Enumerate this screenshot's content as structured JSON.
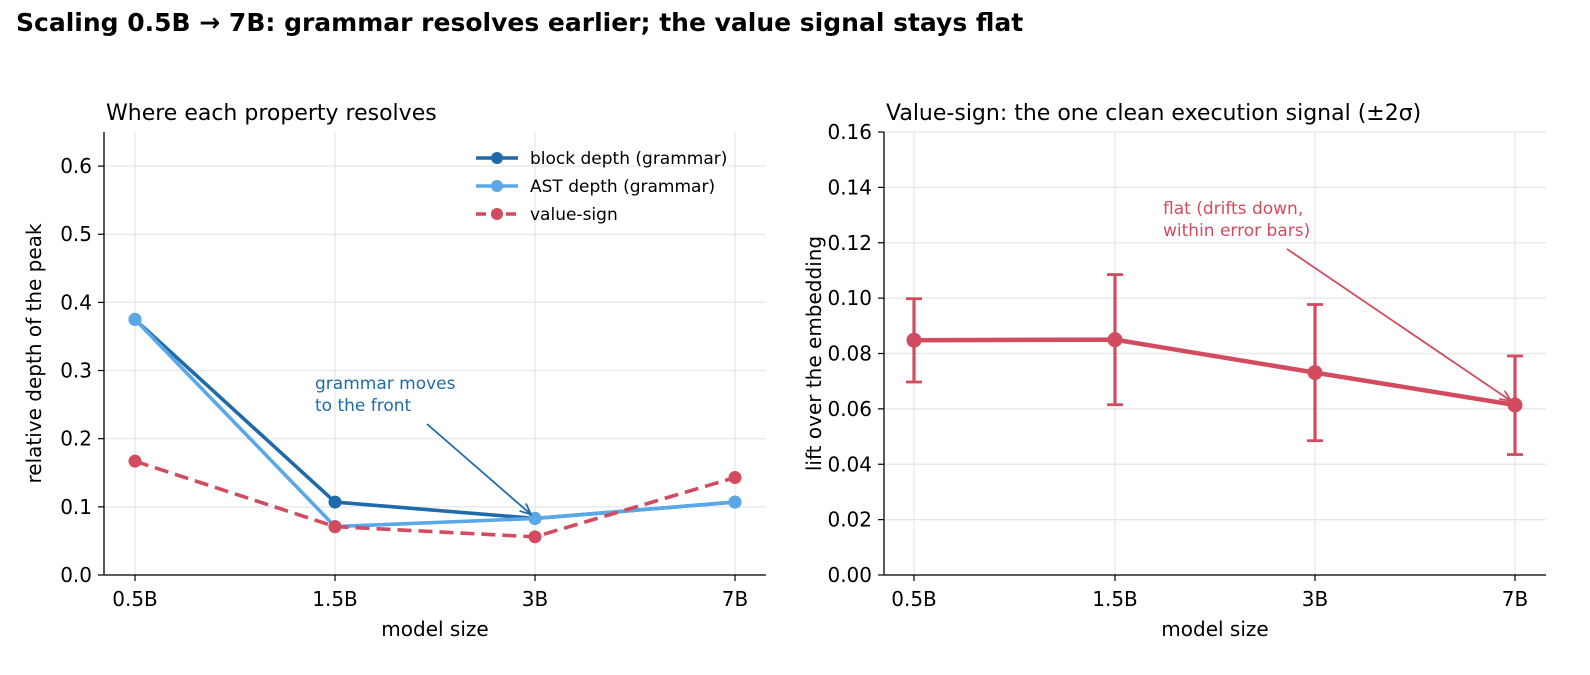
{
  "suptitle": "Scaling 0.5B → 7B: grammar resolves earlier; the value signal stays flat",
  "colors": {
    "block": "#1f6aa8",
    "ast": "#5aa8e8",
    "value": "#d24b5f",
    "grid": "#e6e6e6",
    "axis": "#000000"
  },
  "chart_data": [
    {
      "type": "line",
      "title": "Where each property resolves",
      "xlabel": "model size",
      "ylabel": "relative depth of the peak",
      "categories": [
        "0.5B",
        "1.5B",
        "3B",
        "7B"
      ],
      "ylim": [
        0,
        0.65
      ],
      "yticks": [
        0.0,
        0.1,
        0.2,
        0.3,
        0.4,
        0.5,
        0.6
      ],
      "ytick_labels": [
        "0.0",
        "0.1",
        "0.2",
        "0.3",
        "0.4",
        "0.5",
        "0.6"
      ],
      "grid": true,
      "legend_position": "top-right",
      "series": [
        {
          "name": "block depth (grammar)",
          "values": [
            0.375,
            0.107,
            0.083,
            0.107
          ],
          "color": "#1f6aa8",
          "style": "solid"
        },
        {
          "name": "AST depth (grammar)",
          "values": [
            0.375,
            0.071,
            0.083,
            0.107
          ],
          "color": "#5aa8e8",
          "style": "solid"
        },
        {
          "name": "value-sign",
          "values": [
            0.167,
            0.071,
            0.056,
            0.143
          ],
          "color": "#d24b5f",
          "style": "dashed"
        }
      ],
      "annotation": {
        "lines": [
          "grammar moves",
          "to the front"
        ],
        "target_category": "3B",
        "target_value": 0.083,
        "color": "#1f6aa8"
      }
    },
    {
      "type": "line",
      "title": "Value-sign: the one clean execution signal (±2σ)",
      "xlabel": "model size",
      "ylabel": "lift over the embedding",
      "categories": [
        "0.5B",
        "1.5B",
        "3B",
        "7B"
      ],
      "ylim": [
        0,
        0.16
      ],
      "yticks": [
        0.0,
        0.02,
        0.04,
        0.06,
        0.08,
        0.1,
        0.12,
        0.14,
        0.16
      ],
      "ytick_labels": [
        "0.00",
        "0.02",
        "0.04",
        "0.06",
        "0.08",
        "0.10",
        "0.12",
        "0.14",
        "0.16"
      ],
      "grid": true,
      "series": [
        {
          "values": [
            0.0848,
            0.085,
            0.0731,
            0.0614
          ],
          "error_low": [
            0.0697,
            0.0615,
            0.0485,
            0.0435
          ],
          "error_high": [
            0.0998,
            0.1085,
            0.0977,
            0.0791
          ],
          "color": "#d24b5f"
        }
      ],
      "annotation": {
        "lines": [
          "flat (drifts down,",
          "within error bars)"
        ],
        "target_category": "7B",
        "target_value": 0.0614,
        "color": "#d24b5f"
      }
    }
  ]
}
